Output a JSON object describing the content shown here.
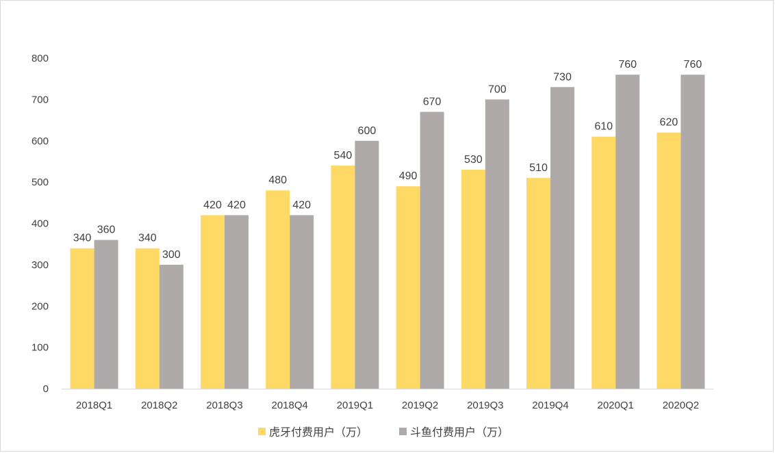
{
  "chart_data": {
    "type": "bar",
    "categories": [
      "2018Q1",
      "2018Q2",
      "2018Q3",
      "2018Q4",
      "2019Q1",
      "2019Q2",
      "2019Q3",
      "2019Q4",
      "2020Q1",
      "2020Q2"
    ],
    "series": [
      {
        "name": "虎牙付费用户（万）",
        "color": "#FFD966",
        "values": [
          340,
          340,
          420,
          480,
          540,
          490,
          530,
          510,
          610,
          620
        ]
      },
      {
        "name": "斗鱼付费用户（万）",
        "color": "#AEAAAA",
        "values": [
          360,
          300,
          420,
          420,
          600,
          670,
          700,
          730,
          760,
          760
        ]
      }
    ],
    "yticks": [
      0,
      100,
      200,
      300,
      400,
      500,
      600,
      700,
      800
    ],
    "ylim": [
      0,
      800
    ],
    "grid": false,
    "legend": "bottom-center",
    "data_labels": true
  }
}
